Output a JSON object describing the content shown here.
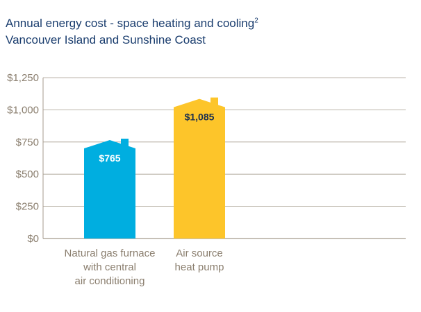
{
  "title": {
    "main": "Annual energy cost - space heating and cooling",
    "superscript": "2",
    "subtitle": "Vancouver Island and Sunshine Coast"
  },
  "chart_data": {
    "type": "bar",
    "title": "Annual energy cost - space heating and cooling",
    "subtitle": "Vancouver Island and Sunshine Coast",
    "categories": [
      [
        "Natural gas furnace",
        "with central",
        "air conditioning"
      ],
      [
        "Air source",
        "heat pump"
      ]
    ],
    "values": [
      765,
      1085
    ],
    "value_labels": [
      "$765",
      "$1,085"
    ],
    "bar_colors": [
      "#00aee0",
      "#fdc52a"
    ],
    "value_label_colors": [
      "#ffffff",
      "#1a2f4f"
    ],
    "bar_shape": "house",
    "ylim": [
      0,
      1250
    ],
    "yticks": [
      0,
      250,
      500,
      750,
      1000,
      1250
    ],
    "ytick_labels": [
      "$0",
      "$250",
      "$500",
      "$750",
      "$1,000",
      "$1,250"
    ],
    "grid": true,
    "xlabel": "",
    "ylabel": ""
  },
  "colors": {
    "title": "#1a3d6e",
    "axis_text": "#8a7e6e",
    "grid": "#a49a8c"
  }
}
